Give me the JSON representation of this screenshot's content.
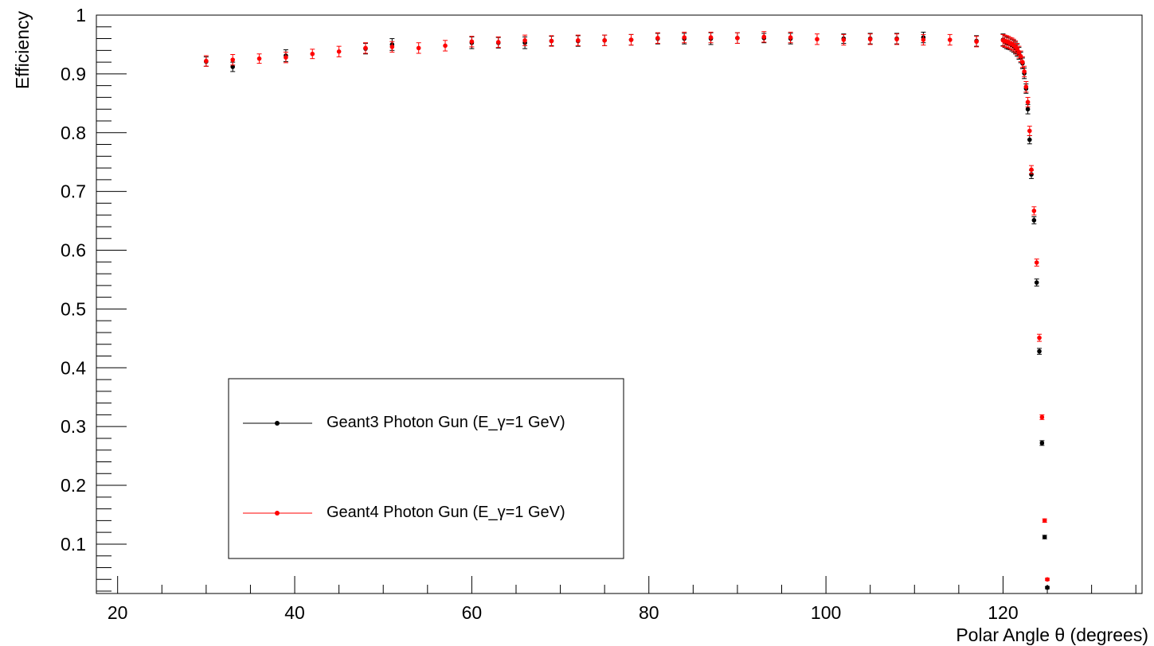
{
  "chart_data": {
    "type": "scatter",
    "xlabel": "Polar Angle θ (degrees)",
    "ylabel": "Efficiency",
    "xlim": [
      17.6,
      135.7
    ],
    "ylim": [
      0.016,
      1.0
    ],
    "x_ticks": [
      "20",
      "40",
      "60",
      "80",
      "100",
      "120"
    ],
    "y_ticks": [
      "0.1",
      "0.2",
      "0.3",
      "0.4",
      "0.5",
      "0.6",
      "0.7",
      "0.8",
      "0.9",
      "1"
    ],
    "grid": false,
    "legend_position": "lower-left",
    "series": [
      {
        "name": "Geant3 Photon Gun (E_γ=1 GeV)",
        "color": "#000000",
        "points": [
          [
            30,
            0.921,
            0.008
          ],
          [
            33,
            0.912,
            0.008
          ],
          [
            39,
            0.931,
            0.01
          ],
          [
            48,
            0.943,
            0.009
          ],
          [
            51,
            0.95,
            0.01
          ],
          [
            60,
            0.953,
            0.01
          ],
          [
            63,
            0.953,
            0.009
          ],
          [
            66,
            0.953,
            0.01
          ],
          [
            69,
            0.956,
            0.008
          ],
          [
            72,
            0.956,
            0.009
          ],
          [
            75,
            0.957,
            0.009
          ],
          [
            78,
            0.958,
            0.009
          ],
          [
            81,
            0.96,
            0.009
          ],
          [
            84,
            0.96,
            0.009
          ],
          [
            87,
            0.96,
            0.01
          ],
          [
            90,
            0.961,
            0.009
          ],
          [
            93,
            0.961,
            0.008
          ],
          [
            96,
            0.96,
            0.009
          ],
          [
            102,
            0.96,
            0.008
          ],
          [
            105,
            0.96,
            0.009
          ],
          [
            108,
            0.96,
            0.009
          ],
          [
            111,
            0.962,
            0.009
          ],
          [
            117,
            0.956,
            0.009
          ],
          [
            120.0,
            0.958,
            0.01
          ],
          [
            120.2,
            0.955,
            0.01
          ],
          [
            120.4,
            0.953,
            0.01
          ],
          [
            120.6,
            0.952,
            0.01
          ],
          [
            120.8,
            0.951,
            0.01
          ],
          [
            121.0,
            0.949,
            0.01
          ],
          [
            121.2,
            0.947,
            0.01
          ],
          [
            121.4,
            0.944,
            0.01
          ],
          [
            121.6,
            0.94,
            0.01
          ],
          [
            121.8,
            0.935,
            0.01
          ],
          [
            122.0,
            0.928,
            0.009
          ],
          [
            122.2,
            0.918,
            0.009
          ],
          [
            122.4,
            0.901,
            0.009
          ],
          [
            122.6,
            0.875,
            0.008
          ],
          [
            122.8,
            0.84,
            0.008
          ],
          [
            123.0,
            0.788,
            0.007
          ],
          [
            123.2,
            0.729,
            0.007
          ],
          [
            123.5,
            0.651,
            0.006
          ],
          [
            123.8,
            0.545,
            0.006
          ],
          [
            124.1,
            0.428,
            0.005
          ],
          [
            124.4,
            0.272,
            0.004
          ],
          [
            124.7,
            0.112,
            0.003
          ],
          [
            125.0,
            0.026,
            0.002
          ]
        ]
      },
      {
        "name": "Geant4 Photon Gun (E_γ=1 GeV)",
        "color": "#ff0000",
        "points": [
          [
            30,
            0.922,
            0.009
          ],
          [
            33,
            0.924,
            0.009
          ],
          [
            36,
            0.926,
            0.008
          ],
          [
            39,
            0.928,
            0.009
          ],
          [
            42,
            0.934,
            0.008
          ],
          [
            45,
            0.938,
            0.009
          ],
          [
            48,
            0.944,
            0.009
          ],
          [
            51,
            0.946,
            0.009
          ],
          [
            54,
            0.944,
            0.009
          ],
          [
            57,
            0.948,
            0.009
          ],
          [
            60,
            0.955,
            0.009
          ],
          [
            63,
            0.954,
            0.009
          ],
          [
            66,
            0.957,
            0.009
          ],
          [
            69,
            0.956,
            0.009
          ],
          [
            72,
            0.957,
            0.009
          ],
          [
            75,
            0.957,
            0.009
          ],
          [
            78,
            0.958,
            0.009
          ],
          [
            81,
            0.961,
            0.009
          ],
          [
            84,
            0.962,
            0.009
          ],
          [
            87,
            0.962,
            0.009
          ],
          [
            90,
            0.961,
            0.009
          ],
          [
            93,
            0.963,
            0.009
          ],
          [
            96,
            0.962,
            0.009
          ],
          [
            99,
            0.959,
            0.009
          ],
          [
            102,
            0.958,
            0.009
          ],
          [
            105,
            0.959,
            0.009
          ],
          [
            108,
            0.959,
            0.009
          ],
          [
            111,
            0.958,
            0.009
          ],
          [
            114,
            0.958,
            0.009
          ],
          [
            117,
            0.955,
            0.009
          ],
          [
            120.0,
            0.957,
            0.01
          ],
          [
            120.2,
            0.956,
            0.01
          ],
          [
            120.4,
            0.955,
            0.01
          ],
          [
            120.6,
            0.954,
            0.01
          ],
          [
            120.8,
            0.952,
            0.01
          ],
          [
            121.0,
            0.951,
            0.01
          ],
          [
            121.2,
            0.949,
            0.01
          ],
          [
            121.4,
            0.946,
            0.01
          ],
          [
            121.6,
            0.942,
            0.01
          ],
          [
            121.8,
            0.937,
            0.01
          ],
          [
            122.0,
            0.93,
            0.009
          ],
          [
            122.2,
            0.92,
            0.009
          ],
          [
            122.4,
            0.904,
            0.009
          ],
          [
            122.6,
            0.878,
            0.009
          ],
          [
            122.8,
            0.852,
            0.008
          ],
          [
            123.0,
            0.803,
            0.008
          ],
          [
            123.2,
            0.737,
            0.007
          ],
          [
            123.5,
            0.667,
            0.007
          ],
          [
            123.8,
            0.579,
            0.006
          ],
          [
            124.1,
            0.451,
            0.006
          ],
          [
            124.4,
            0.316,
            0.004
          ],
          [
            124.7,
            0.14,
            0.003
          ],
          [
            125.0,
            0.04,
            0.002
          ]
        ]
      }
    ]
  }
}
